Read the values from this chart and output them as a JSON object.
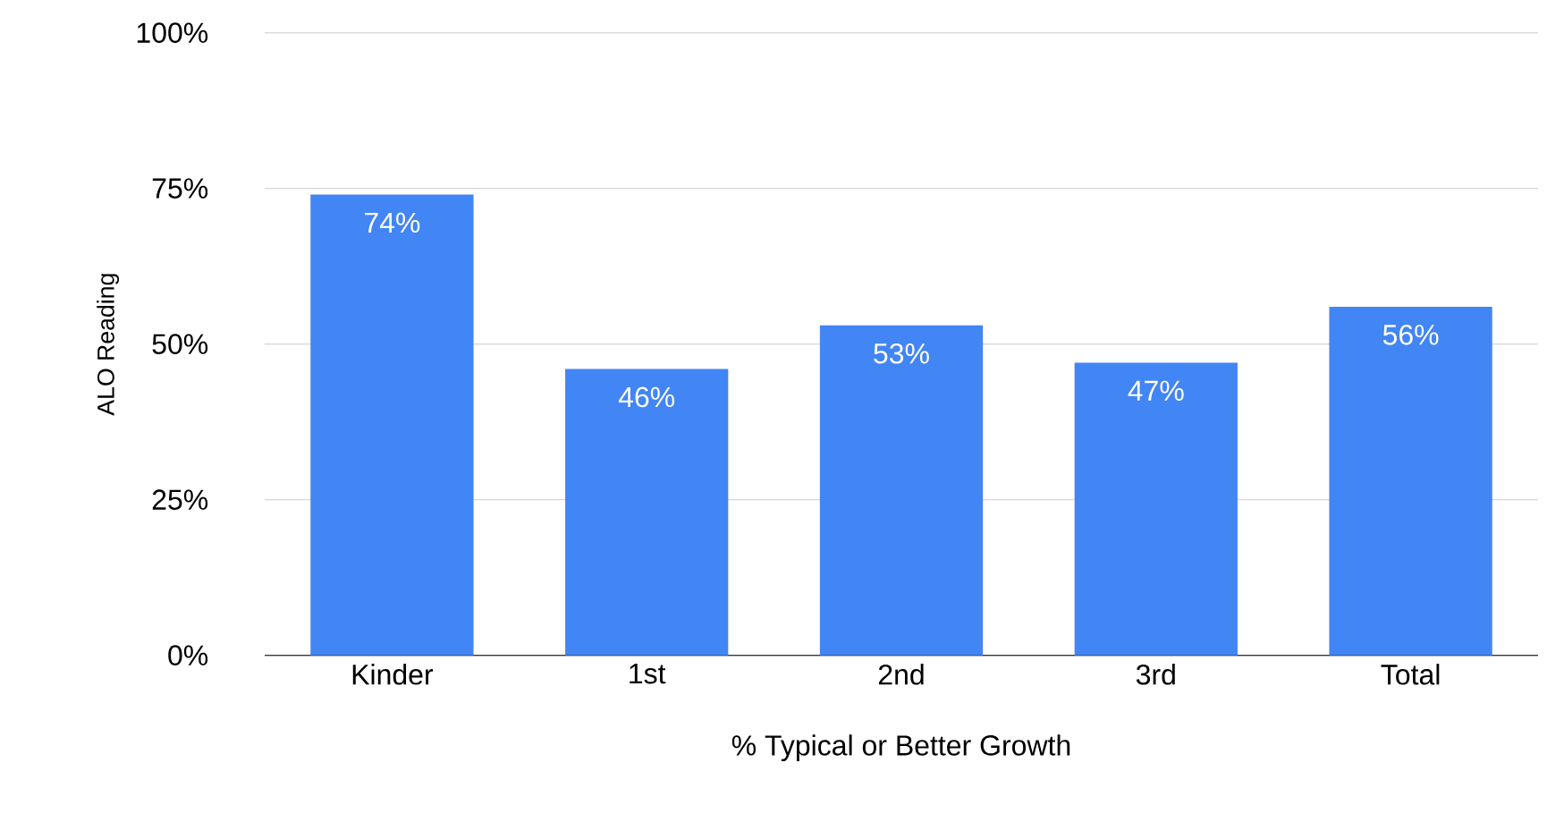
{
  "chart_data": {
    "type": "bar",
    "xlabel": "% Typical or Better Growth",
    "ylabel": "ALO Reading",
    "categories": [
      "Kinder",
      "1st",
      "2nd",
      "3rd",
      "Total"
    ],
    "values": [
      74,
      46,
      53,
      47,
      56
    ],
    "color": "#4285f4",
    "value_labels": [
      "74%",
      "46%",
      "53%",
      "47%",
      "56%"
    ],
    "ylim": [
      0,
      100
    ],
    "yticks": [
      {
        "value": 0,
        "label": "0%"
      },
      {
        "value": 25,
        "label": "25%"
      },
      {
        "value": 50,
        "label": "50%"
      },
      {
        "value": 75,
        "label": "75%"
      },
      {
        "value": 100,
        "label": "100%"
      }
    ],
    "grid": "y"
  }
}
